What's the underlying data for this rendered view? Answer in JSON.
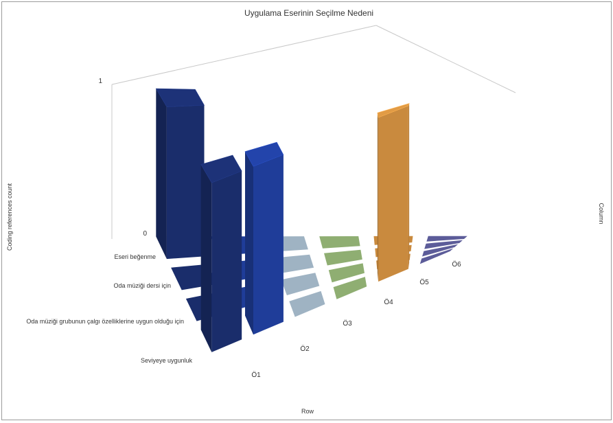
{
  "chart_data": {
    "type": "bar3d",
    "title": "Uygulama Eserinin Seçilme Nedeni",
    "xlabel": "Row",
    "ylabel": "Coding references count",
    "zlabel": "Column",
    "zlim": [
      0,
      1
    ],
    "z_ticks": [
      "0",
      "1"
    ],
    "rows": [
      "Ö1",
      "Ö2",
      "Ö3",
      "Ö4",
      "Ö5",
      "Ö6"
    ],
    "columns": [
      "Eseri beğenme",
      "Oda müziği dersi için",
      "Oda müziği grubunun çalgı özelliklerine uygun olduğu için",
      "Seviyeye uygunluk"
    ],
    "series_colors": [
      "#1a2d6b",
      "#1f3d99",
      "#9fb3c3",
      "#8fae72",
      "#c98a3e",
      "#5c5c99"
    ],
    "values": [
      [
        1,
        0,
        0,
        1
      ],
      [
        1,
        0,
        0,
        0
      ],
      [
        0,
        0,
        0,
        0
      ],
      [
        0,
        0,
        0,
        0
      ],
      [
        1,
        0,
        0,
        0
      ],
      [
        0,
        0,
        0,
        0
      ]
    ]
  }
}
